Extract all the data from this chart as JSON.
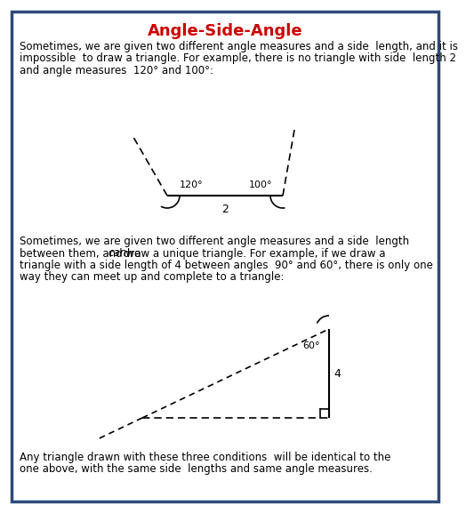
{
  "title": "Angle-Side-Angle",
  "title_color": "#CC0000",
  "border_color": "#2E4A7A",
  "background_color": "#FFFFFF",
  "text_color": "#000000",
  "para1_line1": "Sometimes, we are given two different angle measures and a side  length, and it is",
  "para1_line2": "impossible  to draw a triangle. For example, there is no triangle with side  length 2",
  "para1_line3": "and angle measures  120° and 100°:",
  "para2_line1": "Sometimes, we are given two different angle measures and a side  length",
  "para2_line2_before": "between them, and we ",
  "para2_line2_italic": "can",
  "para2_line2_after": " draw a unique triangle. For example, if we draw a",
  "para2_line3": "triangle with a side length of 4 between angles  90° and 60°, there is only one",
  "para2_line4": "way they can meet up and complete to a triangle:",
  "para3_line1": "Any triangle drawn with these three conditions  will be identical to the",
  "para3_line2": "one above, with the same side  lengths and same angle measures."
}
